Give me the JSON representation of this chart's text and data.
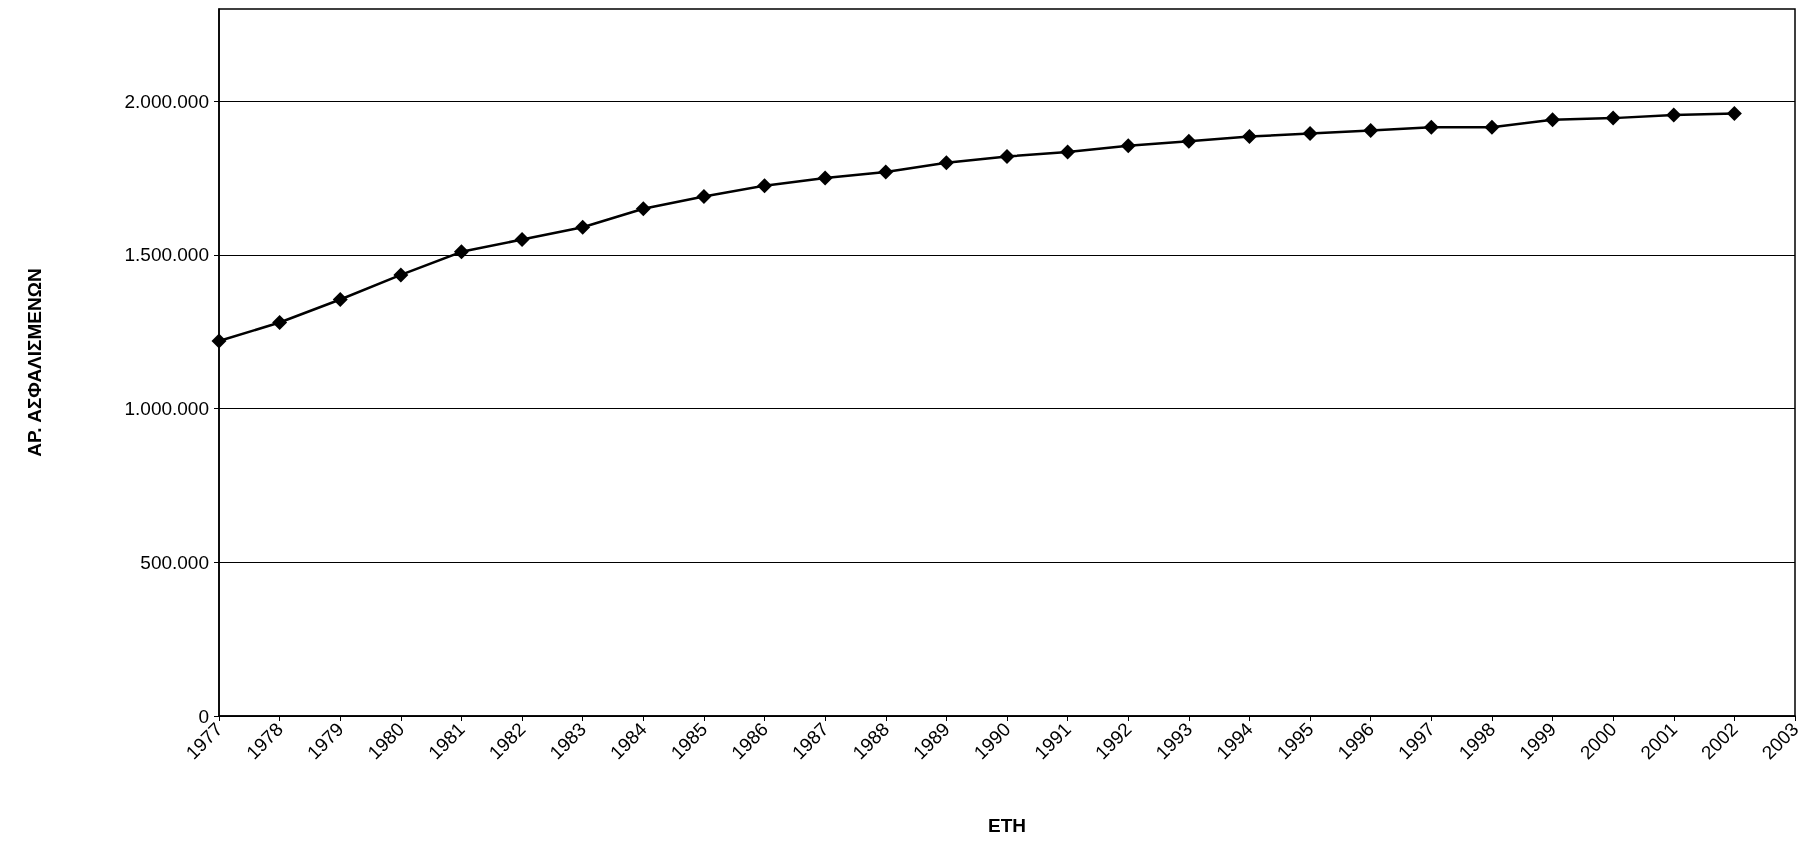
{
  "chart_data": {
    "type": "line",
    "xlabel": "ΕΤΗ",
    "ylabel": "ΑΡ. ΑΣΦΑΛΙΣΜΕΝΩΝ",
    "categories": [
      "1977",
      "1978",
      "1979",
      "1980",
      "1981",
      "1982",
      "1983",
      "1984",
      "1985",
      "1986",
      "1987",
      "1988",
      "1989",
      "1990",
      "1991",
      "1992",
      "1993",
      "1994",
      "1995",
      "1996",
      "1997",
      "1998",
      "1999",
      "2000",
      "2001",
      "2002",
      "2003"
    ],
    "series": [
      {
        "color": "#000000",
        "values": [
          1220000,
          1280000,
          1355000,
          1435000,
          1510000,
          1550000,
          1590000,
          1650000,
          1690000,
          1725000,
          1750000,
          1770000,
          1800000,
          1820000,
          1835000,
          1855000,
          1870000,
          1885000,
          1895000,
          1905000,
          1915000,
          1915000,
          1940000,
          1945000,
          1955000,
          1960000,
          null
        ]
      }
    ],
    "ylim": [
      0,
      2300000
    ],
    "yticks": [
      0,
      {
        "value": 500000,
        "label": "500.000"
      },
      {
        "value": 1000000,
        "label": "1.000.000"
      },
      {
        "value": 1500000,
        "label": "1.500.000"
      },
      {
        "value": 2000000,
        "label": "2.000.000"
      }
    ],
    "grid": "y",
    "marker": "diamond",
    "line_style": "solid"
  }
}
